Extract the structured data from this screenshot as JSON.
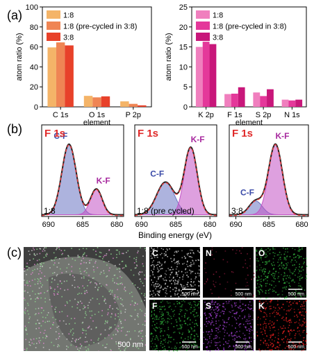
{
  "panels": {
    "a": "(a)",
    "b": "(b)",
    "c": "(c)"
  },
  "chart_data": [
    {
      "type": "bar",
      "panel": "a",
      "ylabel": "atom ratio (%)",
      "xlabel": "element",
      "ylim": [
        0,
        100
      ],
      "yticks": [
        0,
        20,
        40,
        60,
        80,
        100
      ],
      "categories": [
        "C 1s",
        "O 1s",
        "P 2p"
      ],
      "legend_position": "top-left",
      "series": [
        {
          "name": "1:8",
          "color": "#f4b468",
          "values": [
            59.5,
            11.0,
            5.5
          ]
        },
        {
          "name": "1:8 (pre-cycled in 3:8)",
          "color": "#ef8554",
          "values": [
            64.5,
            9.5,
            3.0
          ]
        },
        {
          "name": "3:8",
          "color": "#e8412a",
          "values": [
            61.5,
            10.5,
            1.5
          ]
        }
      ]
    },
    {
      "type": "bar",
      "panel": "a",
      "ylabel": "atom ratio (%)",
      "xlabel": "element",
      "ylim": [
        0,
        25
      ],
      "yticks": [
        0,
        5,
        10,
        15,
        20,
        25
      ],
      "categories": [
        "K 2p",
        "F 1s",
        "S 2p",
        "N 1s"
      ],
      "legend_position": "top-left",
      "series": [
        {
          "name": "1:8",
          "color": "#f07fbe",
          "values": [
            15.0,
            3.2,
            3.6,
            1.8
          ]
        },
        {
          "name": "1:8 (pre-cycled in 3:8)",
          "color": "#e4389a",
          "values": [
            16.3,
            3.3,
            2.7,
            1.6
          ]
        },
        {
          "name": "3:8",
          "color": "#c8177a",
          "values": [
            15.7,
            4.9,
            4.4,
            1.8
          ]
        }
      ]
    },
    {
      "type": "line",
      "panel": "b",
      "xlabel": "Binding energy (eV)",
      "xlim": [
        691,
        679
      ],
      "xticks": [
        690,
        685,
        680
      ],
      "subplots": [
        {
          "title": "F 1s",
          "sample": "1:8",
          "peaks": [
            {
              "label": "C-F",
              "center": 687.0,
              "height": 0.82,
              "width": 1.05,
              "color": "#6a74c2"
            },
            {
              "label": "K-F",
              "center": 683.0,
              "height": 0.3,
              "width": 0.85,
              "color": "#c252c4"
            }
          ]
        },
        {
          "title": "F 1s",
          "sample": "1:8 (pre cycled)",
          "peaks": [
            {
              "label": "C-F",
              "center": 686.5,
              "height": 0.38,
              "width": 1.3,
              "color": "#6a74c2"
            },
            {
              "label": "K-F",
              "center": 682.8,
              "height": 0.78,
              "width": 0.95,
              "color": "#c252c4"
            }
          ]
        },
        {
          "title": "F 1s",
          "sample": "3:8",
          "peaks": [
            {
              "label": "C-F",
              "center": 687.0,
              "height": 0.16,
              "width": 1.0,
              "color": "#6a74c2"
            },
            {
              "label": "K-F",
              "center": 684.0,
              "height": 0.82,
              "width": 1.05,
              "color": "#c252c4"
            }
          ]
        }
      ],
      "envelope_color": "#e33c3c",
      "data_color": "#222222"
    }
  ],
  "eds_maps": {
    "overlay_scale": "500 nm",
    "tiles": [
      {
        "element": "C",
        "scale": "500 nm",
        "color": "#d8d8d8"
      },
      {
        "element": "N",
        "scale": "500 nm",
        "color": "#8a1a3a"
      },
      {
        "element": "O",
        "scale": "500 nm",
        "color": "#2faa3a"
      },
      {
        "element": "F",
        "scale": "500 nm",
        "color": "#2faa3a"
      },
      {
        "element": "S",
        "scale": "500 nm",
        "color": "#a040d0"
      },
      {
        "element": "K",
        "scale": "500 nm",
        "color": "#e02020"
      }
    ]
  }
}
